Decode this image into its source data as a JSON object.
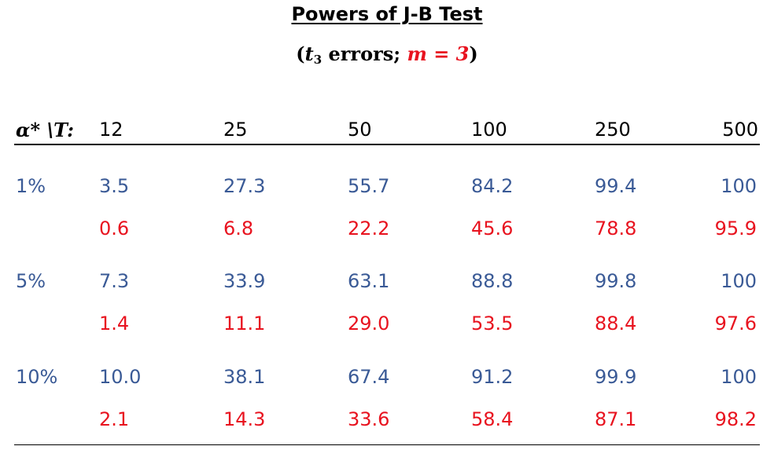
{
  "title": "Powers of J-B Test",
  "subtitle": {
    "open": "(",
    "t": "t",
    "sub": "3",
    "errors": " errors; ",
    "m_expr": "m = 3",
    "close": ")"
  },
  "corner_label": "α* \\T:",
  "columns": [
    "12",
    "25",
    "50",
    "100",
    "250",
    "500"
  ],
  "rows": [
    {
      "alpha": "1%",
      "values_blue": [
        "3.5",
        "27.3",
        "55.7",
        "84.2",
        "99.4",
        "100"
      ],
      "values_red": [
        "0.6",
        "6.8",
        "22.2",
        "45.6",
        "78.8",
        "95.9"
      ]
    },
    {
      "alpha": "5%",
      "values_blue": [
        "7.3",
        "33.9",
        "63.1",
        "88.8",
        "99.8",
        "100"
      ],
      "values_red": [
        "1.4",
        "11.1",
        "29.0",
        "53.5",
        "88.4",
        "97.6"
      ]
    },
    {
      "alpha": "10%",
      "values_blue": [
        "10.0",
        "38.1",
        "67.4",
        "91.2",
        "99.9",
        "100"
      ],
      "values_red": [
        "2.1",
        "14.3",
        "33.6",
        "58.4",
        "87.1",
        "98.2"
      ]
    }
  ],
  "colors": {
    "blue": "#3a5a96",
    "red": "#e8131f",
    "text": "#000000"
  }
}
